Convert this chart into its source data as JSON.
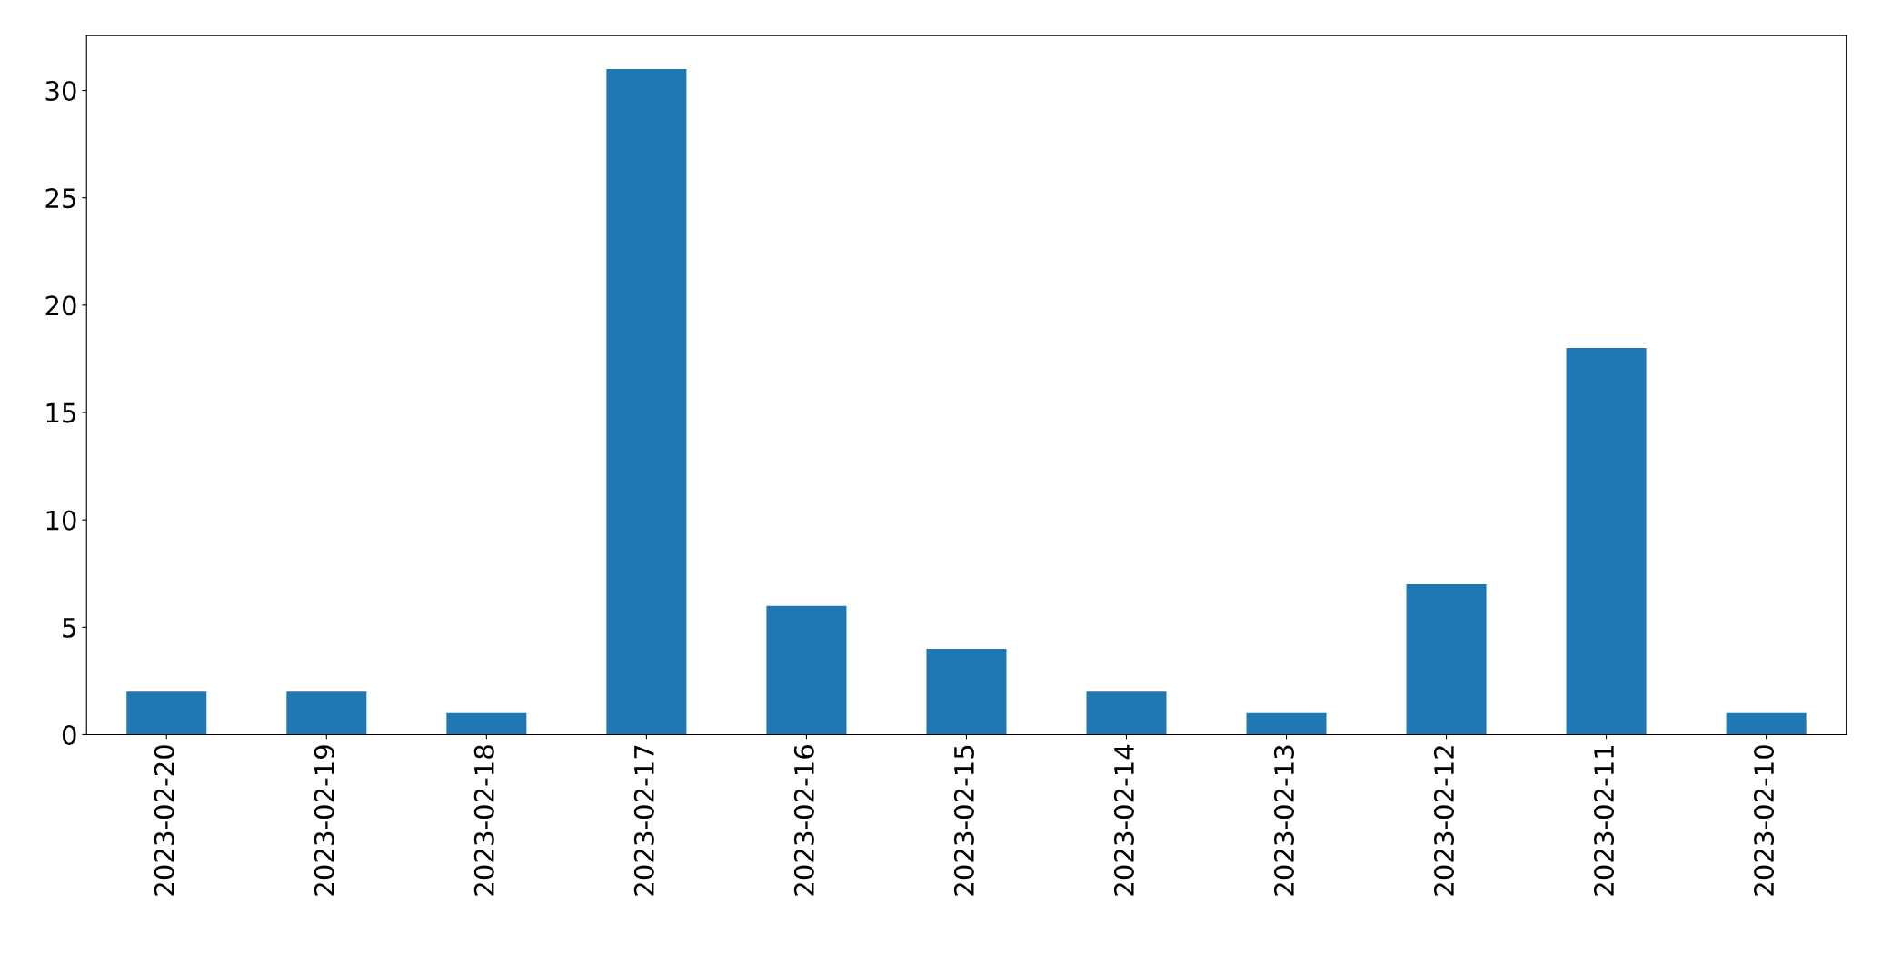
{
  "chart_data": {
    "type": "bar",
    "categories": [
      "2023-02-20",
      "2023-02-19",
      "2023-02-18",
      "2023-02-17",
      "2023-02-16",
      "2023-02-15",
      "2023-02-14",
      "2023-02-13",
      "2023-02-12",
      "2023-02-11",
      "2023-02-10"
    ],
    "values": [
      2,
      2,
      1,
      31,
      6,
      4,
      2,
      1,
      7,
      18,
      1
    ],
    "color": "#1f77b4",
    "ylim": [
      0,
      32.55
    ],
    "yticks": [
      0,
      5,
      10,
      15,
      20,
      25,
      30
    ],
    "grid": false,
    "legend": false
  }
}
